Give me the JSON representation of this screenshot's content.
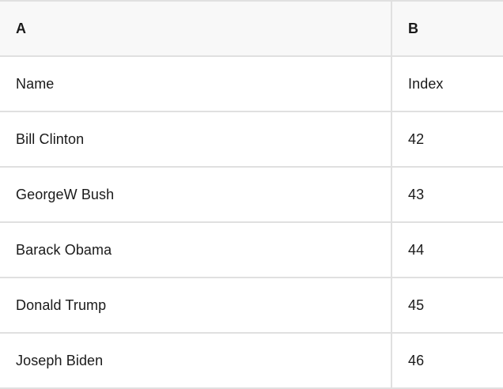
{
  "table": {
    "columns": {
      "a_label": "A",
      "b_label": "B"
    },
    "rows": [
      {
        "A": "Name",
        "B": "Index"
      },
      {
        "A": "Bill Clinton",
        "B": "42"
      },
      {
        "A": "GeorgeW Bush",
        "B": "43"
      },
      {
        "A": "Barack Obama",
        "B": "44"
      },
      {
        "A": "Donald Trump",
        "B": "45"
      },
      {
        "A": "Joseph Biden",
        "B": "46"
      }
    ],
    "colors": {
      "header_bg": "#f8f8f8",
      "row_bg": "#ffffff",
      "grid_border": "#e0e0e0",
      "text": "#1a1a1a"
    }
  }
}
